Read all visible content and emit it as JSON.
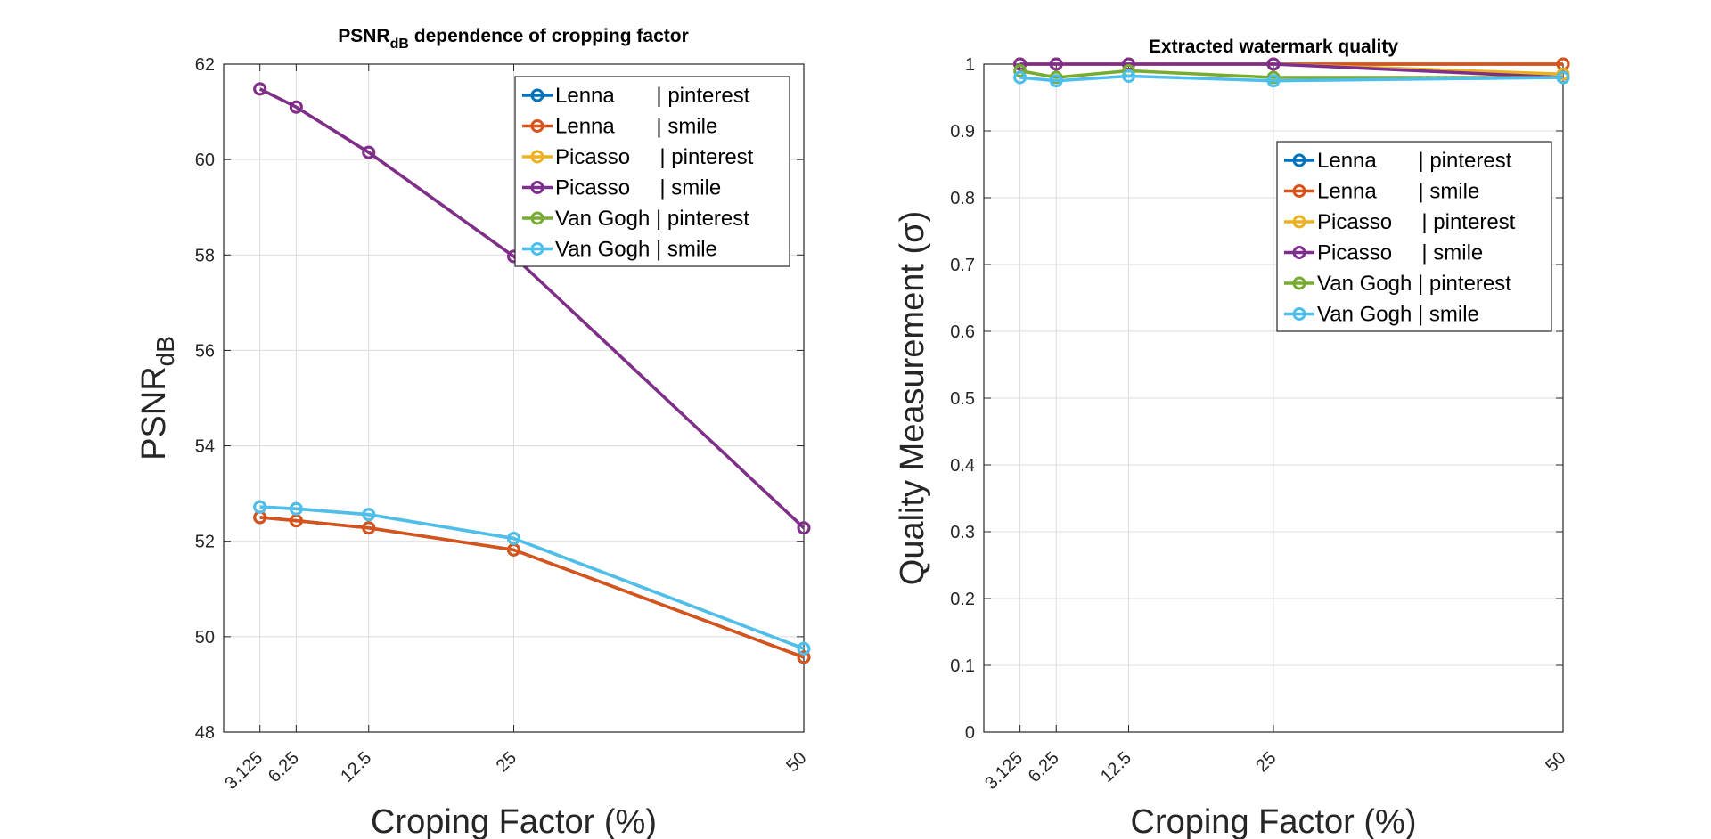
{
  "chart_data": [
    {
      "type": "line",
      "title": "PSNR",
      "title_sub": "dB",
      "title_rest": " dependence of cropping factor",
      "xlabel": "Croping Factor (%)",
      "ylabel": "PSNR",
      "ylabel_sub": "dB",
      "x": [
        3.125,
        6.25,
        12.5,
        25,
        50
      ],
      "x_tick_labels": [
        "3.125",
        "6.25",
        "12.5",
        "25",
        "50"
      ],
      "xlim": [
        0,
        50
      ],
      "ylim": [
        48,
        62
      ],
      "y_ticks": [
        48,
        50,
        52,
        54,
        56,
        58,
        60,
        62
      ],
      "y_tick_labels": [
        "48",
        "50",
        "52",
        "54",
        "56",
        "58",
        "60",
        "62"
      ],
      "grid": true,
      "legend_position": "top-right",
      "series": [
        {
          "name": "Lenna       | pinterest",
          "color": "#0072BD",
          "values": [
            52.5,
            52.43,
            52.28,
            51.82,
            49.57
          ]
        },
        {
          "name": "Lenna       | smile",
          "color": "#D95319",
          "values": [
            52.5,
            52.43,
            52.28,
            51.82,
            49.57
          ]
        },
        {
          "name": "Picasso     | pinterest",
          "color": "#EDB120",
          "values": [
            61.48,
            61.1,
            60.15,
            57.97,
            52.28
          ]
        },
        {
          "name": "Picasso     | smile",
          "color": "#7E2F8E",
          "values": [
            61.48,
            61.1,
            60.15,
            57.97,
            52.28
          ]
        },
        {
          "name": "Van Gogh | pinterest",
          "color": "#77AC30",
          "values": [
            52.72,
            52.68,
            52.56,
            52.06,
            49.75
          ]
        },
        {
          "name": "Van Gogh | smile",
          "color": "#4DBEEE",
          "values": [
            52.72,
            52.68,
            52.56,
            52.06,
            49.75
          ]
        }
      ]
    },
    {
      "type": "line",
      "title": "Extracted watermark quality",
      "xlabel": "Croping Factor (%)",
      "ylabel": "Quality Measurement (σ)",
      "x": [
        3.125,
        6.25,
        12.5,
        25,
        50
      ],
      "x_tick_labels": [
        "3.125",
        "6.25",
        "12.5",
        "25",
        "50"
      ],
      "xlim": [
        0,
        50
      ],
      "ylim": [
        0,
        1
      ],
      "y_ticks": [
        0,
        0.1,
        0.2,
        0.3,
        0.4,
        0.5,
        0.6,
        0.7,
        0.8,
        0.9,
        1
      ],
      "y_tick_labels": [
        "0",
        "0.1",
        "0.2",
        "0.3",
        "0.4",
        "0.5",
        "0.6",
        "0.7",
        "0.8",
        "0.9",
        "1"
      ],
      "grid": true,
      "legend_position": "right",
      "series": [
        {
          "name": "Lenna       | pinterest",
          "color": "#0072BD",
          "values": [
            1.0,
            1.0,
            1.0,
            1.0,
            1.0
          ]
        },
        {
          "name": "Lenna       | smile",
          "color": "#D95319",
          "values": [
            1.0,
            1.0,
            1.0,
            1.0,
            1.0
          ]
        },
        {
          "name": "Picasso     | pinterest",
          "color": "#EDB120",
          "values": [
            1.0,
            1.0,
            1.0,
            1.0,
            0.985
          ]
        },
        {
          "name": "Picasso     | smile",
          "color": "#7E2F8E",
          "values": [
            1.0,
            1.0,
            1.0,
            1.0,
            0.98
          ]
        },
        {
          "name": "Van Gogh | pinterest",
          "color": "#77AC30",
          "values": [
            0.99,
            0.98,
            0.99,
            0.98,
            0.98
          ]
        },
        {
          "name": "Van Gogh | smile",
          "color": "#4DBEEE",
          "values": [
            0.98,
            0.975,
            0.982,
            0.975,
            0.98
          ]
        }
      ]
    }
  ]
}
